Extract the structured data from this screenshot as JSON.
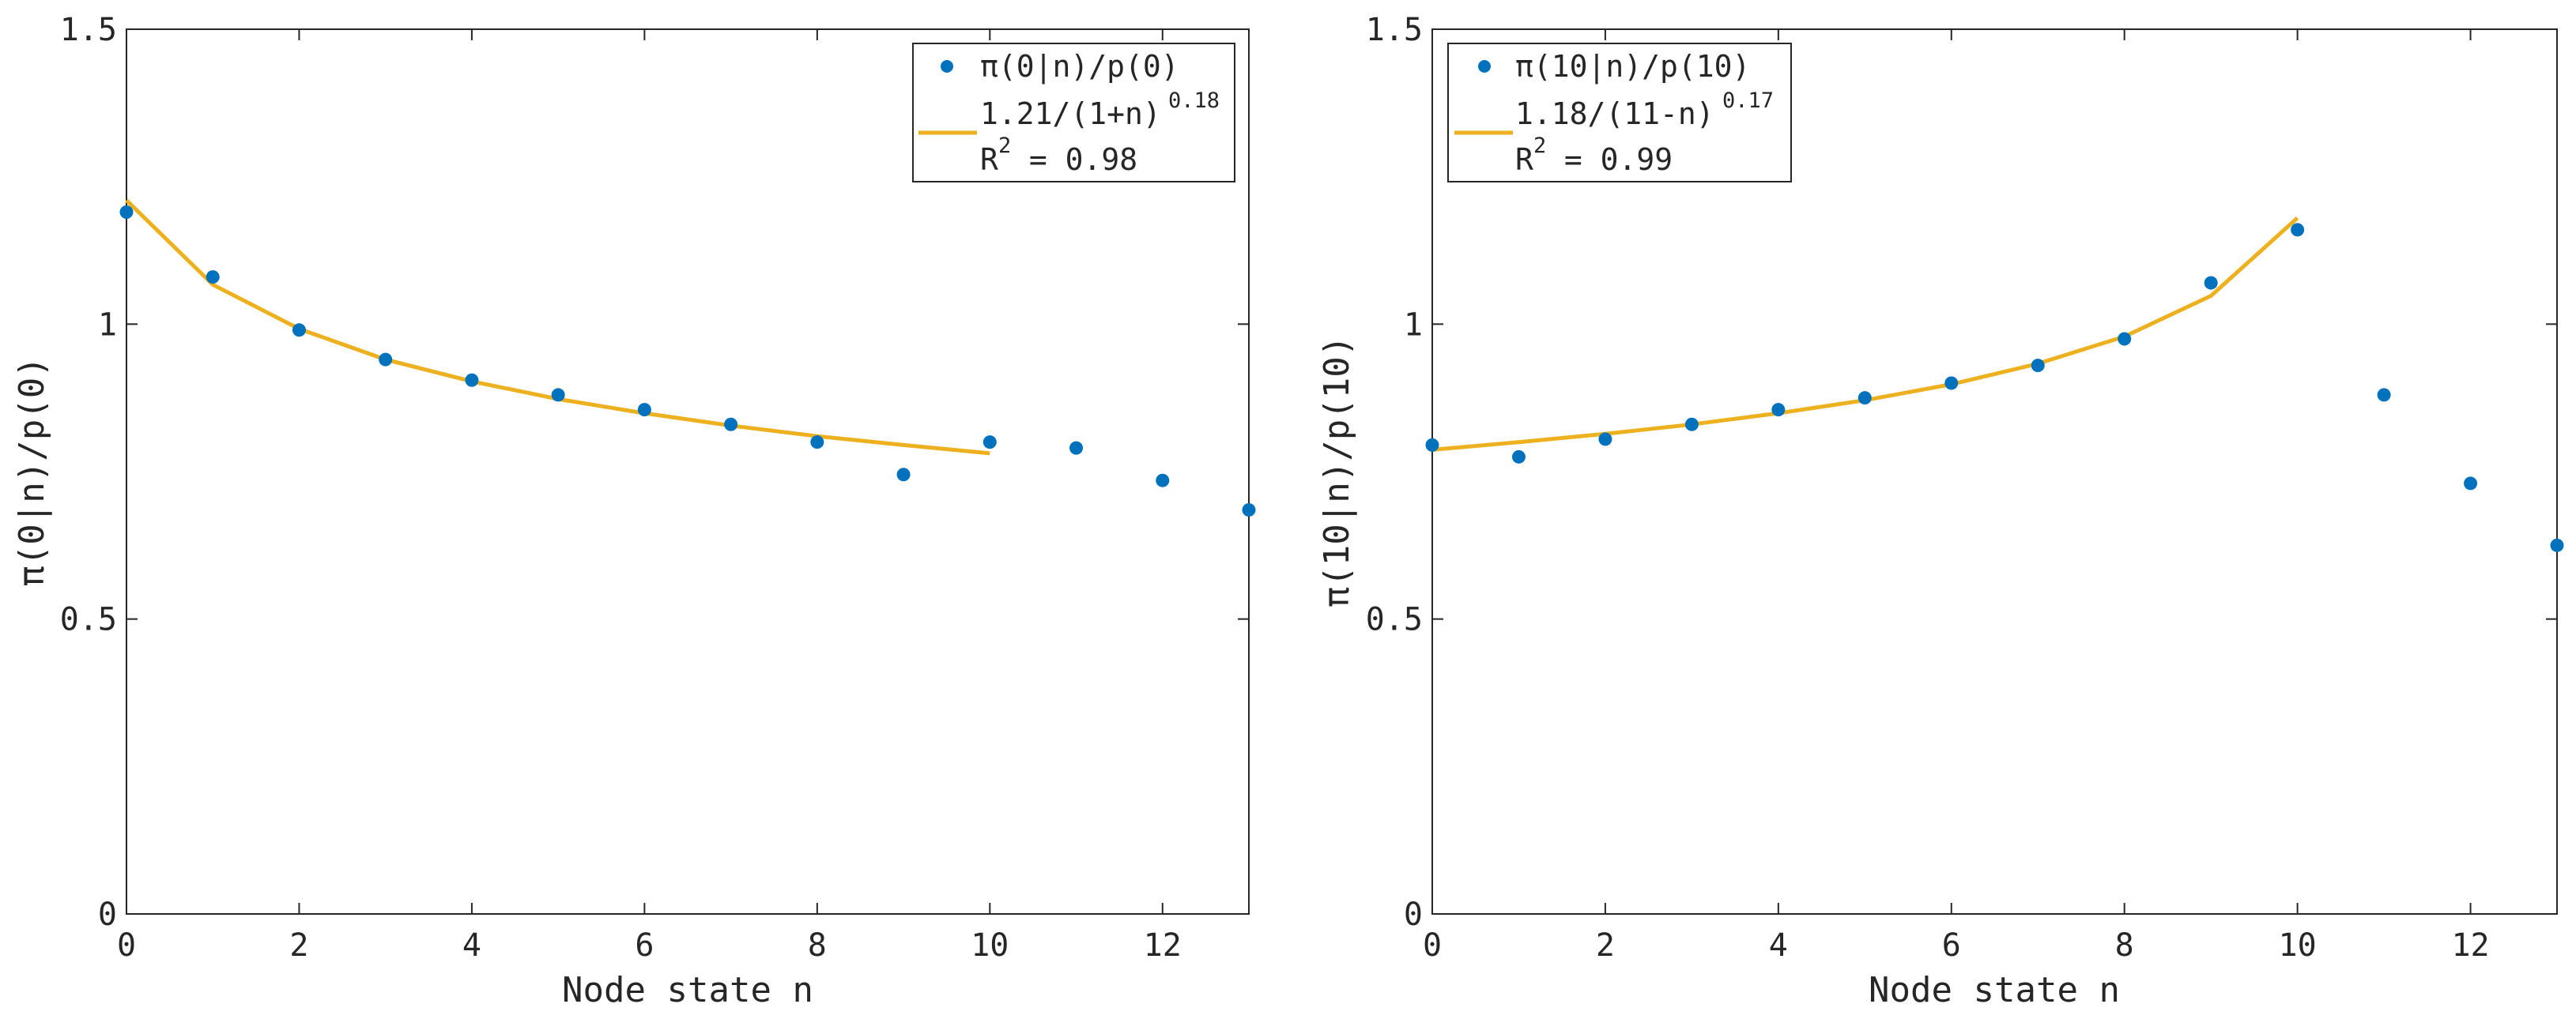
{
  "chart_data": [
    {
      "type": "scatter",
      "xlabel": "Node state n",
      "ylabel": "π(0|n)/p(0)",
      "xlim": [
        0,
        13
      ],
      "ylim": [
        0,
        1.5
      ],
      "xticks": [
        "0",
        "2",
        "4",
        "6",
        "8",
        "10",
        "12"
      ],
      "xtick_values": [
        0,
        2,
        4,
        6,
        8,
        10,
        12
      ],
      "yticks": [
        "0",
        "0.5",
        "1",
        "1.5"
      ],
      "ytick_values": [
        0,
        0.5,
        1,
        1.5
      ],
      "scatter": {
        "name": "π(0|n)/p(0)",
        "x": [
          0,
          1,
          2,
          3,
          4,
          5,
          6,
          7,
          8,
          9,
          10,
          11,
          12,
          13
        ],
        "y": [
          1.19,
          1.08,
          0.99,
          0.94,
          0.905,
          0.88,
          0.855,
          0.83,
          0.8,
          0.745,
          0.8,
          0.79,
          0.735,
          0.685
        ]
      },
      "fit": {
        "name": "1.21/(1+n)",
        "exponent": "0.18",
        "r2": "R",
        "r2_sup": "2",
        "r2_value": " = 0.98",
        "x": [
          0,
          1,
          2,
          3,
          4,
          5,
          6,
          7,
          8,
          9,
          10
        ],
        "y": [
          1.21,
          1.067,
          0.992,
          0.94,
          0.903,
          0.873,
          0.849,
          0.828,
          0.81,
          0.795,
          0.781
        ]
      },
      "legend_position": "top-right"
    },
    {
      "type": "scatter",
      "xlabel": "Node state n",
      "ylabel": "π(10|n)/p(10)",
      "xlim": [
        0,
        13
      ],
      "ylim": [
        0,
        1.5
      ],
      "xticks": [
        "0",
        "2",
        "4",
        "6",
        "8",
        "10",
        "12"
      ],
      "xtick_values": [
        0,
        2,
        4,
        6,
        8,
        10,
        12
      ],
      "yticks": [
        "0",
        "0.5",
        "1",
        "1.5"
      ],
      "ytick_values": [
        0,
        0.5,
        1,
        1.5
      ],
      "scatter": {
        "name": "π(10|n)/p(10)",
        "x": [
          0,
          1,
          2,
          3,
          4,
          5,
          6,
          7,
          8,
          9,
          10,
          11,
          12,
          13
        ],
        "y": [
          0.795,
          0.775,
          0.805,
          0.83,
          0.855,
          0.875,
          0.9,
          0.93,
          0.975,
          1.07,
          1.16,
          0.88,
          0.73,
          0.625
        ]
      },
      "fit": {
        "name": "1.18/(11-n)",
        "exponent": "0.17",
        "r2": "R",
        "r2_sup": "2",
        "r2_value": " = 0.99",
        "x": [
          0,
          1,
          2,
          3,
          4,
          5,
          6,
          7,
          8,
          9,
          10
        ],
        "y": [
          0.787,
          0.8,
          0.814,
          0.83,
          0.849,
          0.871,
          0.898,
          0.933,
          0.979,
          1.048,
          1.18
        ]
      },
      "legend_position": "top-left"
    }
  ],
  "colors": {
    "marker": "#0072BD",
    "fit_line": "#EDB120",
    "axis": "#262626"
  }
}
